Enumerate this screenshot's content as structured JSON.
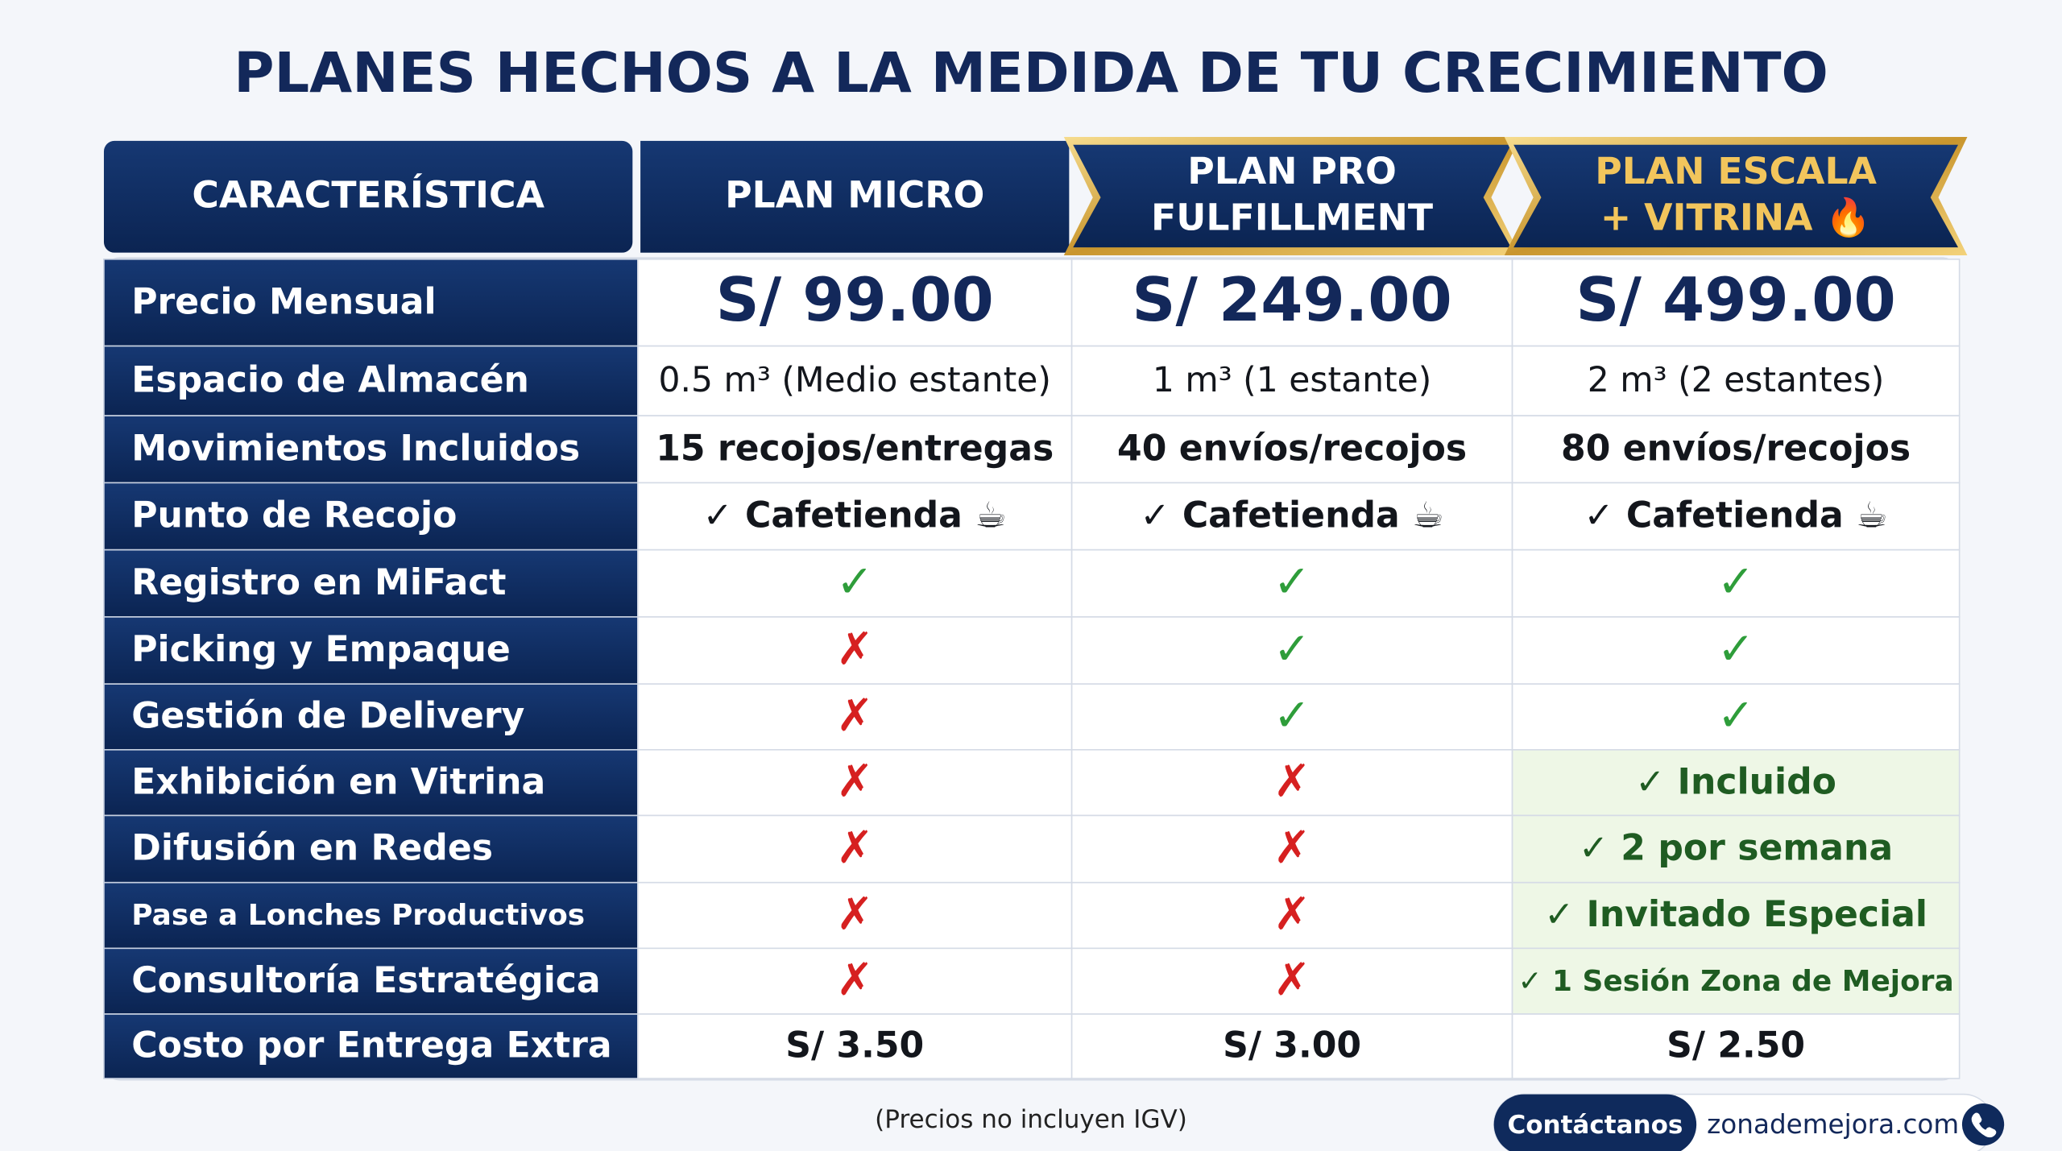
{
  "title": "PLANES HECHOS A LA MEDIDA DE TU CRECIMIENTO",
  "table": {
    "header": [
      "CARACTERÍSTICA",
      "PLAN MICRO",
      [
        "PLAN PRO",
        "FULFILLMENT"
      ],
      [
        "PLAN ESCALA",
        "+ VITRINA 🔥"
      ]
    ],
    "rows": [
      [
        "Precio Mensual",
        "S/ 99.00",
        "S/ 249.00",
        "S/ 499.00"
      ],
      [
        "Espacio de Almacén",
        "0.5 m³ (Medio estante)",
        "1 m³ (1 estante)",
        "2 m³ (2 estantes)"
      ],
      [
        "Movimientos Incluidos",
        "15 recojos/entregas",
        "40 envíos/recojos",
        "80 envíos/recojos"
      ],
      [
        "Punto de Recojo",
        "✓ Cafetienda ☕",
        "✓ Cafetienda ☕",
        "✓ Cafetienda ☕"
      ],
      [
        "Registro en MiFact",
        "✓",
        "✓",
        "✓"
      ],
      [
        "Picking y Empaque",
        "✗",
        "✓",
        "✓"
      ],
      [
        "Gestión de Delivery",
        "✗",
        "✓",
        "✓"
      ],
      [
        "Exhibición en Vitrina",
        "✗",
        "✗",
        "✓ Incluido"
      ],
      [
        "Difusión en Redes",
        "✗",
        "✗",
        "✓ 2 por semana"
      ],
      [
        "Pase a Lonches Productivos",
        "✗",
        "✗",
        "✓ Invitado Especial"
      ],
      [
        "Consultoría Estratégica",
        "✗",
        "✗",
        "✓ 1 Sesión Zona de Mejora"
      ],
      [
        "Costo por Entrega Extra",
        "S/ 3.50",
        "S/ 3.00",
        "S/ 2.50"
      ]
    ]
  },
  "footnote": "(Precios no incluyen IGV)",
  "contact": {
    "button": "Contáctanos",
    "website": "zonademejora.com"
  }
}
